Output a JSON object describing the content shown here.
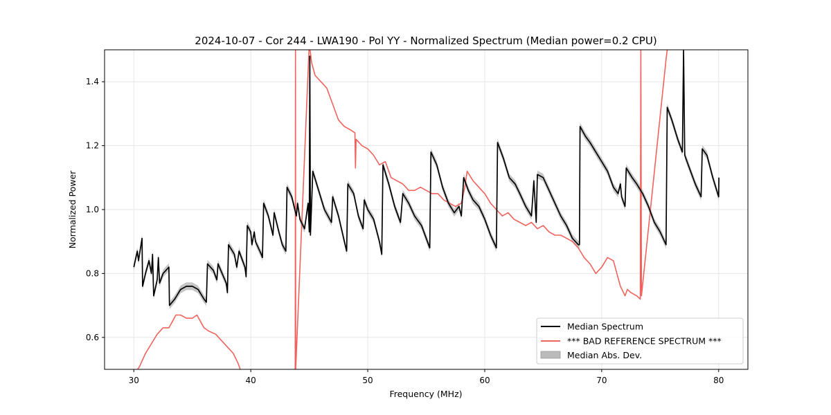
{
  "chart_data": {
    "type": "line",
    "title": "2024-10-07 - Cor 244 - LWA190 - Pol YY - Normalized Spectrum (Median power=0.2 CPU)",
    "xlabel": "Frequency (MHz)",
    "ylabel": "Normalized Power",
    "xlim": [
      27.5,
      82.5
    ],
    "ylim": [
      0.5,
      1.5
    ],
    "xticks": [
      30,
      40,
      50,
      60,
      70,
      80
    ],
    "yticks": [
      0.6,
      0.8,
      1.0,
      1.2,
      1.4
    ],
    "grid": true,
    "legend_position": "lower-right",
    "series": [
      {
        "name": "Median Spectrum",
        "color": "#000000",
        "points": [
          [
            30.0,
            0.82
          ],
          [
            30.3,
            0.87
          ],
          [
            30.4,
            0.84
          ],
          [
            30.7,
            0.91
          ],
          [
            30.75,
            0.76
          ],
          [
            31.0,
            0.8
          ],
          [
            31.3,
            0.84
          ],
          [
            31.5,
            0.8
          ],
          [
            31.6,
            0.86
          ],
          [
            31.7,
            0.73
          ],
          [
            32.0,
            0.78
          ],
          [
            32.1,
            0.85
          ],
          [
            32.2,
            0.77
          ],
          [
            32.5,
            0.8
          ],
          [
            33.0,
            0.82
          ],
          [
            33.05,
            0.7
          ],
          [
            33.5,
            0.72
          ],
          [
            34.0,
            0.75
          ],
          [
            34.5,
            0.76
          ],
          [
            35.0,
            0.76
          ],
          [
            35.5,
            0.75
          ],
          [
            36.0,
            0.72
          ],
          [
            36.2,
            0.71
          ],
          [
            36.3,
            0.83
          ],
          [
            36.8,
            0.81
          ],
          [
            37.1,
            0.78
          ],
          [
            37.2,
            0.83
          ],
          [
            37.9,
            0.77
          ],
          [
            38.0,
            0.74
          ],
          [
            38.1,
            0.89
          ],
          [
            38.6,
            0.86
          ],
          [
            38.8,
            0.82
          ],
          [
            39.0,
            0.87
          ],
          [
            39.5,
            0.82
          ],
          [
            39.6,
            0.79
          ],
          [
            39.7,
            0.95
          ],
          [
            40.0,
            0.93
          ],
          [
            40.1,
            0.89
          ],
          [
            40.3,
            0.93
          ],
          [
            40.4,
            0.9
          ],
          [
            40.9,
            0.86
          ],
          [
            41.0,
            0.85
          ],
          [
            41.1,
            1.02
          ],
          [
            41.5,
            0.98
          ],
          [
            41.9,
            0.92
          ],
          [
            42.0,
            0.99
          ],
          [
            42.4,
            0.93
          ],
          [
            42.7,
            0.89
          ],
          [
            43.0,
            0.87
          ],
          [
            43.1,
            1.07
          ],
          [
            43.5,
            1.04
          ],
          [
            43.9,
            0.98
          ],
          [
            44.0,
            1.02
          ],
          [
            44.2,
            0.97
          ],
          [
            44.6,
            0.94
          ],
          [
            44.9,
            1.02
          ],
          [
            45.0,
            0.93
          ],
          [
            45.05,
            1.48
          ],
          [
            45.1,
            0.92
          ],
          [
            45.3,
            1.12
          ],
          [
            45.8,
            1.06
          ],
          [
            46.3,
            1.0
          ],
          [
            46.9,
            0.96
          ],
          [
            47.0,
            1.04
          ],
          [
            47.5,
            0.98
          ],
          [
            48.0,
            0.9
          ],
          [
            48.2,
            0.87
          ],
          [
            48.3,
            1.08
          ],
          [
            48.8,
            1.05
          ],
          [
            49.2,
            0.98
          ],
          [
            49.6,
            0.94
          ],
          [
            49.7,
            1.03
          ],
          [
            50.0,
            1.0
          ],
          [
            50.5,
            0.97
          ],
          [
            51.0,
            0.9
          ],
          [
            51.2,
            0.86
          ],
          [
            51.3,
            1.14
          ],
          [
            51.8,
            1.08
          ],
          [
            52.3,
            1.01
          ],
          [
            52.8,
            0.96
          ],
          [
            53.0,
            1.05
          ],
          [
            53.5,
            1.02
          ],
          [
            54.0,
            0.98
          ],
          [
            54.6,
            0.95
          ],
          [
            55.0,
            0.91
          ],
          [
            55.3,
            0.88
          ],
          [
            55.4,
            1.18
          ],
          [
            55.9,
            1.14
          ],
          [
            56.4,
            1.07
          ],
          [
            56.9,
            1.02
          ],
          [
            57.4,
            0.99
          ],
          [
            57.8,
            1.01
          ],
          [
            58.0,
            0.98
          ],
          [
            58.2,
            1.1
          ],
          [
            58.6,
            1.06
          ],
          [
            59.0,
            1.03
          ],
          [
            59.5,
            1.01
          ],
          [
            60.0,
            0.97
          ],
          [
            60.5,
            0.92
          ],
          [
            61.0,
            0.88
          ],
          [
            61.1,
            1.21
          ],
          [
            61.6,
            1.16
          ],
          [
            62.1,
            1.1
          ],
          [
            62.6,
            1.08
          ],
          [
            63.0,
            1.05
          ],
          [
            63.5,
            1.01
          ],
          [
            64.0,
            0.98
          ],
          [
            64.2,
            1.09
          ],
          [
            64.4,
            0.96
          ],
          [
            64.5,
            1.11
          ],
          [
            65.0,
            1.1
          ],
          [
            65.5,
            1.06
          ],
          [
            66.0,
            1.02
          ],
          [
            66.5,
            0.98
          ],
          [
            67.0,
            0.95
          ],
          [
            67.5,
            0.91
          ],
          [
            68.0,
            0.89
          ],
          [
            68.1,
            0.89
          ],
          [
            68.15,
            1.26
          ],
          [
            68.6,
            1.23
          ],
          [
            69.0,
            1.21
          ],
          [
            69.5,
            1.18
          ],
          [
            70.0,
            1.15
          ],
          [
            70.5,
            1.12
          ],
          [
            71.0,
            1.07
          ],
          [
            71.4,
            1.05
          ],
          [
            71.6,
            1.08
          ],
          [
            71.7,
            1.04
          ],
          [
            72.0,
            1.01
          ],
          [
            72.1,
            1.13
          ],
          [
            72.6,
            1.1
          ],
          [
            73.0,
            1.08
          ],
          [
            73.5,
            1.05
          ],
          [
            74.0,
            1.01
          ],
          [
            74.5,
            0.96
          ],
          [
            75.0,
            0.93
          ],
          [
            75.5,
            0.89
          ],
          [
            75.6,
            1.32
          ],
          [
            76.0,
            1.28
          ],
          [
            76.5,
            1.22
          ],
          [
            76.9,
            1.18
          ],
          [
            77.0,
            1.5
          ],
          [
            77.1,
            1.17
          ],
          [
            77.5,
            1.13
          ],
          [
            78.0,
            1.08
          ],
          [
            78.5,
            1.04
          ],
          [
            78.6,
            1.19
          ],
          [
            79.0,
            1.17
          ],
          [
            79.5,
            1.1
          ],
          [
            80.0,
            1.04
          ],
          [
            80.02,
            1.1
          ]
        ]
      },
      {
        "name": "*** BAD REFERENCE SPECTRUM ***",
        "color": "#f0625c",
        "points": [
          [
            30.0,
            0.48
          ],
          [
            30.5,
            0.51
          ],
          [
            31.0,
            0.55
          ],
          [
            31.5,
            0.58
          ],
          [
            32.0,
            0.61
          ],
          [
            32.5,
            0.63
          ],
          [
            33.0,
            0.63
          ],
          [
            33.3,
            0.65
          ],
          [
            33.6,
            0.67
          ],
          [
            34.0,
            0.67
          ],
          [
            34.5,
            0.66
          ],
          [
            35.0,
            0.66
          ],
          [
            35.4,
            0.67
          ],
          [
            35.7,
            0.65
          ],
          [
            36.0,
            0.63
          ],
          [
            36.4,
            0.62
          ],
          [
            37.0,
            0.61
          ],
          [
            37.5,
            0.59
          ],
          [
            38.0,
            0.57
          ],
          [
            38.5,
            0.55
          ],
          [
            38.9,
            0.52
          ],
          [
            39.2,
            0.49
          ],
          [
            43.8,
            0.5
          ],
          [
            43.82,
            1.5
          ],
          [
            43.84,
            0.5
          ],
          [
            45.0,
            1.52
          ],
          [
            45.2,
            1.46
          ],
          [
            45.5,
            1.42
          ],
          [
            46.0,
            1.4
          ],
          [
            46.5,
            1.38
          ],
          [
            47.0,
            1.33
          ],
          [
            47.5,
            1.28
          ],
          [
            48.0,
            1.26
          ],
          [
            48.5,
            1.25
          ],
          [
            48.9,
            1.24
          ],
          [
            48.95,
            1.13
          ],
          [
            49.0,
            1.22
          ],
          [
            49.5,
            1.2
          ],
          [
            50.0,
            1.19
          ],
          [
            50.5,
            1.17
          ],
          [
            51.0,
            1.14
          ],
          [
            51.5,
            1.15
          ],
          [
            52.0,
            1.1
          ],
          [
            52.5,
            1.09
          ],
          [
            53.0,
            1.08
          ],
          [
            53.5,
            1.06
          ],
          [
            54.0,
            1.06
          ],
          [
            54.5,
            1.07
          ],
          [
            55.0,
            1.06
          ],
          [
            55.5,
            1.05
          ],
          [
            56.0,
            1.05
          ],
          [
            56.5,
            1.03
          ],
          [
            57.0,
            1.02
          ],
          [
            57.5,
            1.01
          ],
          [
            58.0,
            1.02
          ],
          [
            58.3,
            1.07
          ],
          [
            58.5,
            1.12
          ],
          [
            59.0,
            1.09
          ],
          [
            59.5,
            1.07
          ],
          [
            60.0,
            1.05
          ],
          [
            60.5,
            1.02
          ],
          [
            61.0,
            1.0
          ],
          [
            61.5,
            0.98
          ],
          [
            62.0,
            0.99
          ],
          [
            62.5,
            0.97
          ],
          [
            63.0,
            0.96
          ],
          [
            63.5,
            0.95
          ],
          [
            64.0,
            0.96
          ],
          [
            64.5,
            0.94
          ],
          [
            65.0,
            0.95
          ],
          [
            65.5,
            0.93
          ],
          [
            66.0,
            0.92
          ],
          [
            66.5,
            0.92
          ],
          [
            67.0,
            0.91
          ],
          [
            67.5,
            0.9
          ],
          [
            68.0,
            0.88
          ],
          [
            68.5,
            0.85
          ],
          [
            69.0,
            0.83
          ],
          [
            69.5,
            0.8
          ],
          [
            70.0,
            0.82
          ],
          [
            70.5,
            0.85
          ],
          [
            71.0,
            0.84
          ],
          [
            71.3,
            0.8
          ],
          [
            71.6,
            0.76
          ],
          [
            72.0,
            0.73
          ],
          [
            72.2,
            0.75
          ],
          [
            72.5,
            0.74
          ],
          [
            73.0,
            0.73
          ],
          [
            73.3,
            0.72
          ],
          [
            73.35,
            1.5
          ],
          [
            73.4,
            0.73
          ],
          [
            75.5,
            1.47
          ],
          [
            75.6,
            1.5
          ]
        ]
      }
    ],
    "band": {
      "name": "Median Abs. Dev.",
      "color": "#bbbbbb",
      "of_series": "Median Spectrum",
      "half_width": 0.012
    }
  }
}
